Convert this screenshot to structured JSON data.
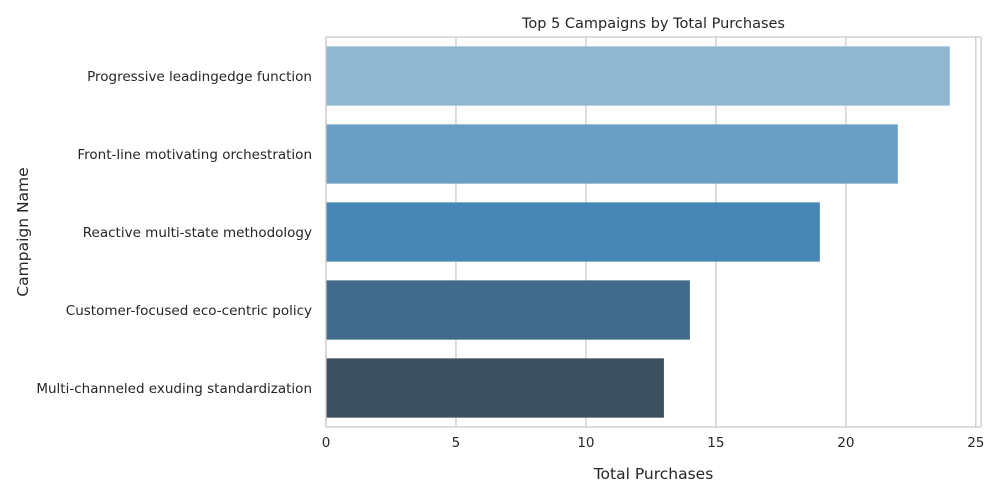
{
  "chart_data": {
    "type": "bar",
    "orientation": "horizontal",
    "title": "Top 5 Campaigns by Total Purchases",
    "xlabel": "Total Purchases",
    "ylabel": "Campaign Name",
    "categories": [
      "Progressive leadingedge function",
      "Front-line motivating orchestration",
      "Reactive multi-state methodology",
      "Customer-focused eco-centric policy",
      "Multi-channeled exuding standardization"
    ],
    "values": [
      24,
      22,
      19,
      14,
      13
    ],
    "colors": [
      "#90b6d2",
      "#6a9fc4",
      "#4687b6",
      "#426a8a",
      "#3b505f"
    ],
    "xlim": [
      0,
      25.2
    ],
    "xticks": [
      0,
      5,
      10,
      15,
      20,
      25
    ],
    "grid": true,
    "legend": "none"
  }
}
